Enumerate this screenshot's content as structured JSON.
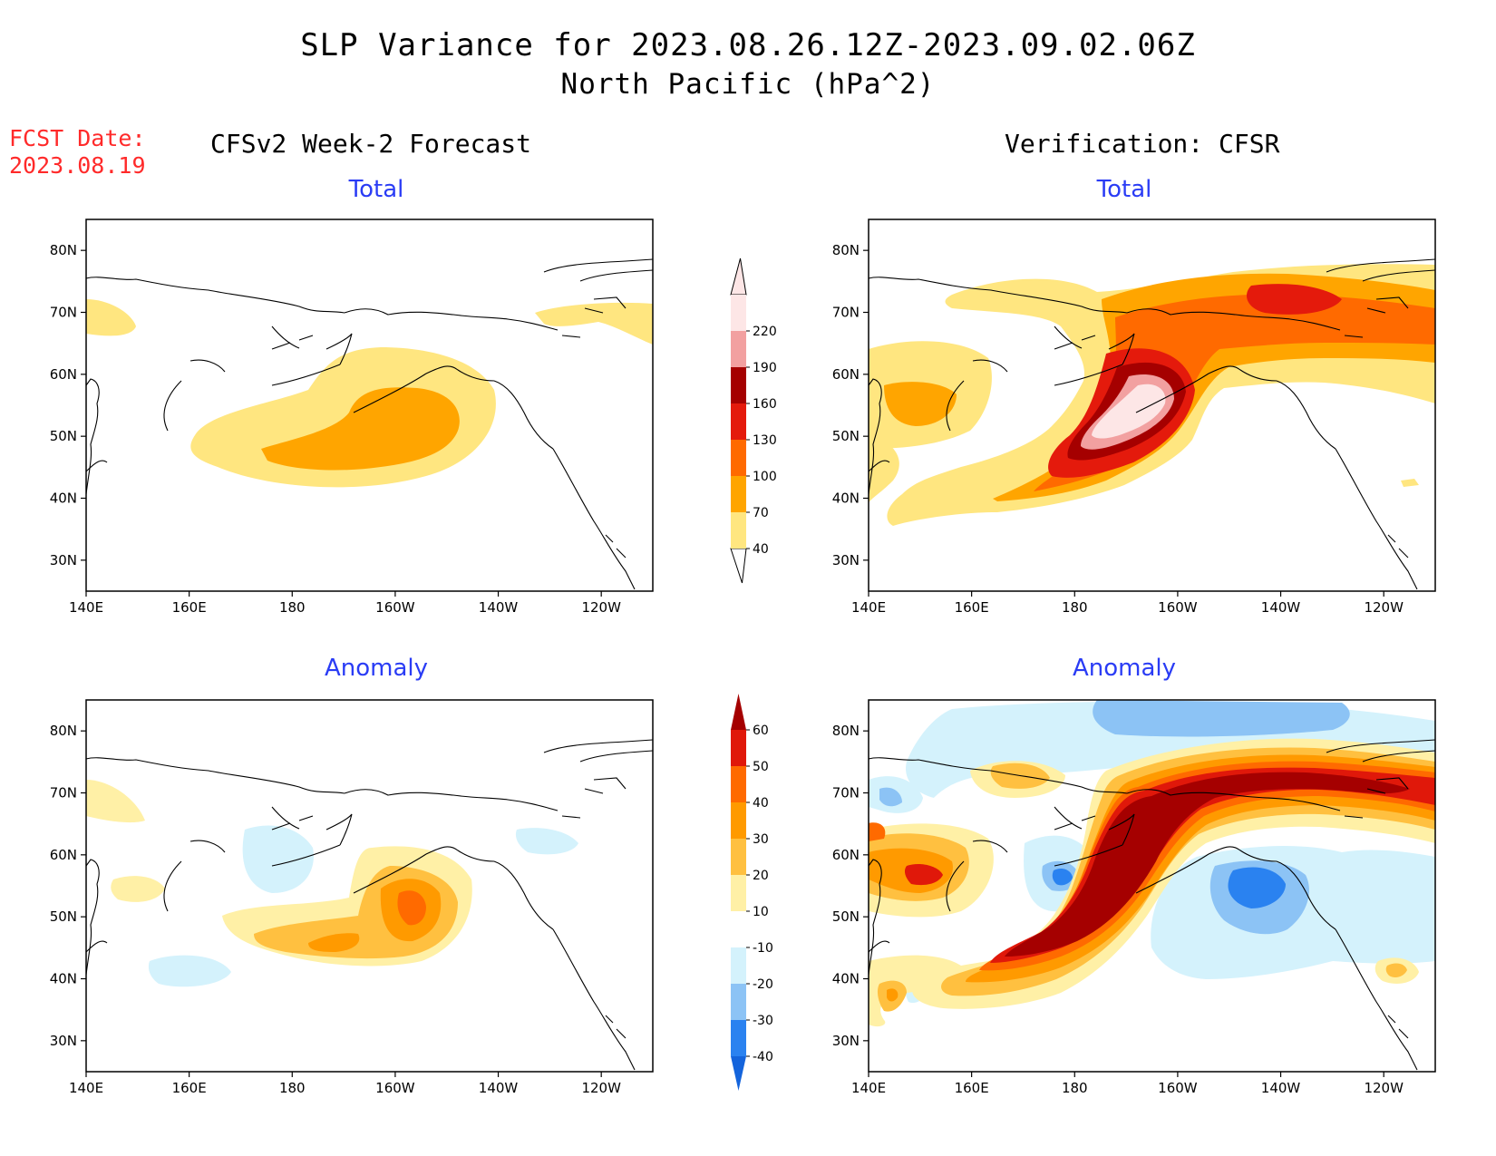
{
  "title": {
    "line1": "SLP Variance for 2023.08.26.12Z-2023.09.02.06Z",
    "line2": "North Pacific (hPa^2)"
  },
  "forecast_date": {
    "label": "FCST Date:",
    "value": "2023.08.19"
  },
  "left_heading": "CFSv2 Week-2 Forecast",
  "right_heading": "Verification: CFSR",
  "panels": {
    "top_left": {
      "subtitle": "Total"
    },
    "top_right": {
      "subtitle": "Total"
    },
    "bottom_left": {
      "subtitle": "Anomaly"
    },
    "bottom_right": {
      "subtitle": "Anomaly"
    }
  },
  "axes": {
    "lon_ticks": [
      "140E",
      "160E",
      "180",
      "160W",
      "140W",
      "120W"
    ],
    "lon_values": [
      140,
      160,
      180,
      200,
      220,
      240
    ],
    "lat_ticks": [
      "80N",
      "70N",
      "60N",
      "50N",
      "40N",
      "30N"
    ],
    "lat_values": [
      80,
      70,
      60,
      50,
      40,
      30
    ],
    "lon_range": [
      140,
      250
    ],
    "lat_range": [
      25,
      85
    ]
  },
  "colorbars": {
    "total": {
      "labels": [
        "40",
        "70",
        "100",
        "130",
        "160",
        "190",
        "220"
      ],
      "colors": [
        "#ffe680",
        "#ffa500",
        "#ff6a00",
        "#e41a0c",
        "#a50000",
        "#f2a0a0",
        "#fde6e6"
      ]
    },
    "anomaly": {
      "labels": [
        "-40",
        "-30",
        "-20",
        "-10",
        "10",
        "20",
        "30",
        "40",
        "50",
        "60"
      ],
      "colors": [
        "#1464dc",
        "#2a82f0",
        "#8cc3f5",
        "#d4f2fc",
        "#ffffff",
        "#fff0a6",
        "#ffc040",
        "#ff9a00",
        "#ff6a00",
        "#e0180a",
        "#a50000"
      ]
    }
  }
}
